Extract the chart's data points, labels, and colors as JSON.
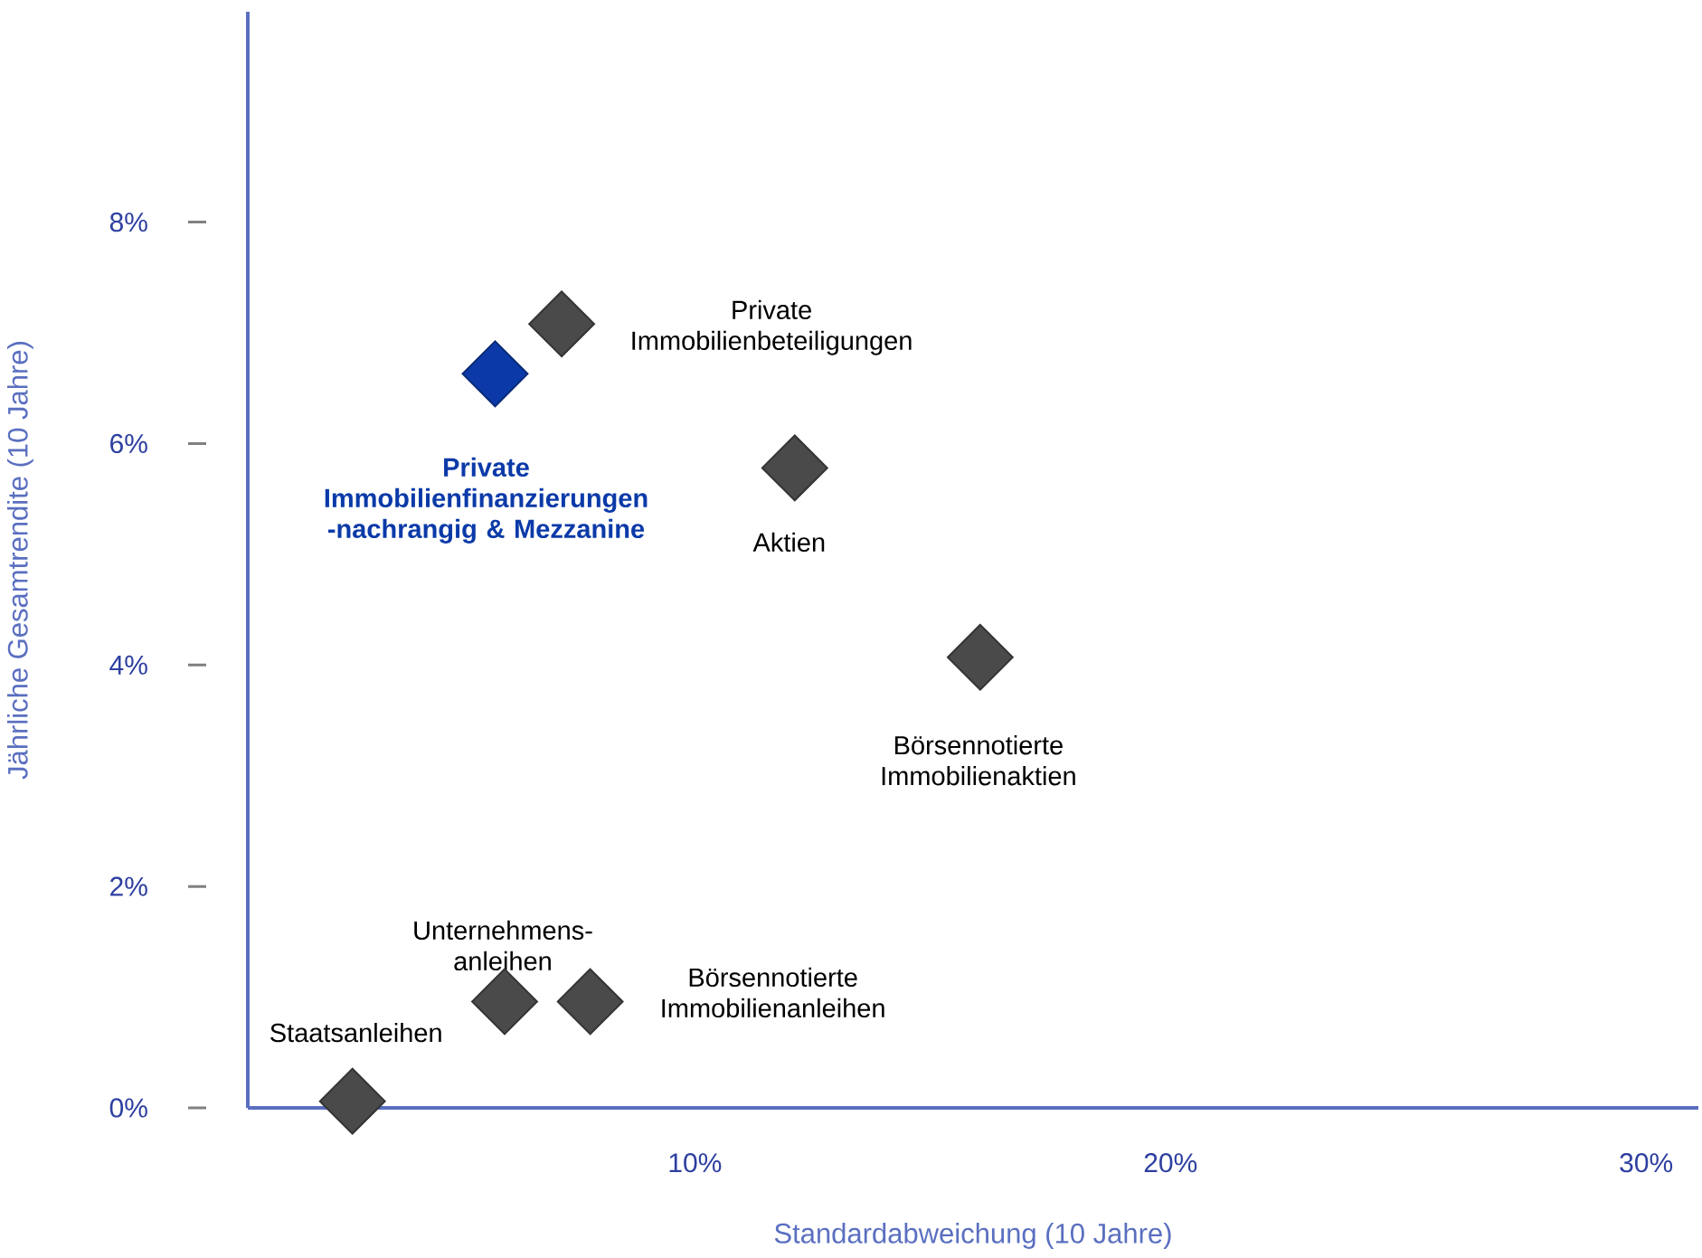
{
  "chart_data": {
    "type": "scatter",
    "xlabel": "Standardabweichung (10 Jahre)",
    "ylabel": "Jährliche Gesamtrendite (10 Jahre)",
    "xlim": [
      0.6,
      31.1
    ],
    "ylim": [
      0,
      9.9
    ],
    "xticks": [
      {
        "value": 10,
        "label": "10%"
      },
      {
        "value": 20,
        "label": "20%"
      },
      {
        "value": 30,
        "label": "30%"
      }
    ],
    "yticks": [
      {
        "value": 0,
        "label": "0%"
      },
      {
        "value": 2,
        "label": "2%"
      },
      {
        "value": 4,
        "label": "4%"
      },
      {
        "value": 6,
        "label": "6%"
      },
      {
        "value": 8,
        "label": "8%"
      }
    ],
    "marker": "diamond",
    "legend": false,
    "grid": false,
    "series": [
      {
        "name": "Staatsanleihen",
        "color": "#4a4a4a",
        "x": [
          2.8
        ],
        "values": [
          0.06
        ]
      },
      {
        "name": "Unternehmens-anleihen",
        "color": "#4a4a4a",
        "x": [
          6.0
        ],
        "values": [
          0.96
        ]
      },
      {
        "name": "Börsennotierte Immobilienanleihen",
        "color": "#4a4a4a",
        "x": [
          7.8
        ],
        "values": [
          0.96
        ]
      },
      {
        "name": "Private Immobilienfinanzierungen -nachrangig & Mezzanine",
        "color": "#0b3aa8",
        "x": [
          5.8
        ],
        "values": [
          6.63
        ]
      },
      {
        "name": "Private Immobilienbeteiligungen",
        "color": "#4a4a4a",
        "x": [
          7.2
        ],
        "values": [
          7.08
        ]
      },
      {
        "name": "Aktien",
        "color": "#4a4a4a",
        "x": [
          12.1
        ],
        "values": [
          5.78
        ]
      },
      {
        "name": "Börsennotierte Immobilienaktien",
        "color": "#4a4a4a",
        "x": [
          16.0
        ],
        "values": [
          4.07
        ]
      }
    ]
  }
}
